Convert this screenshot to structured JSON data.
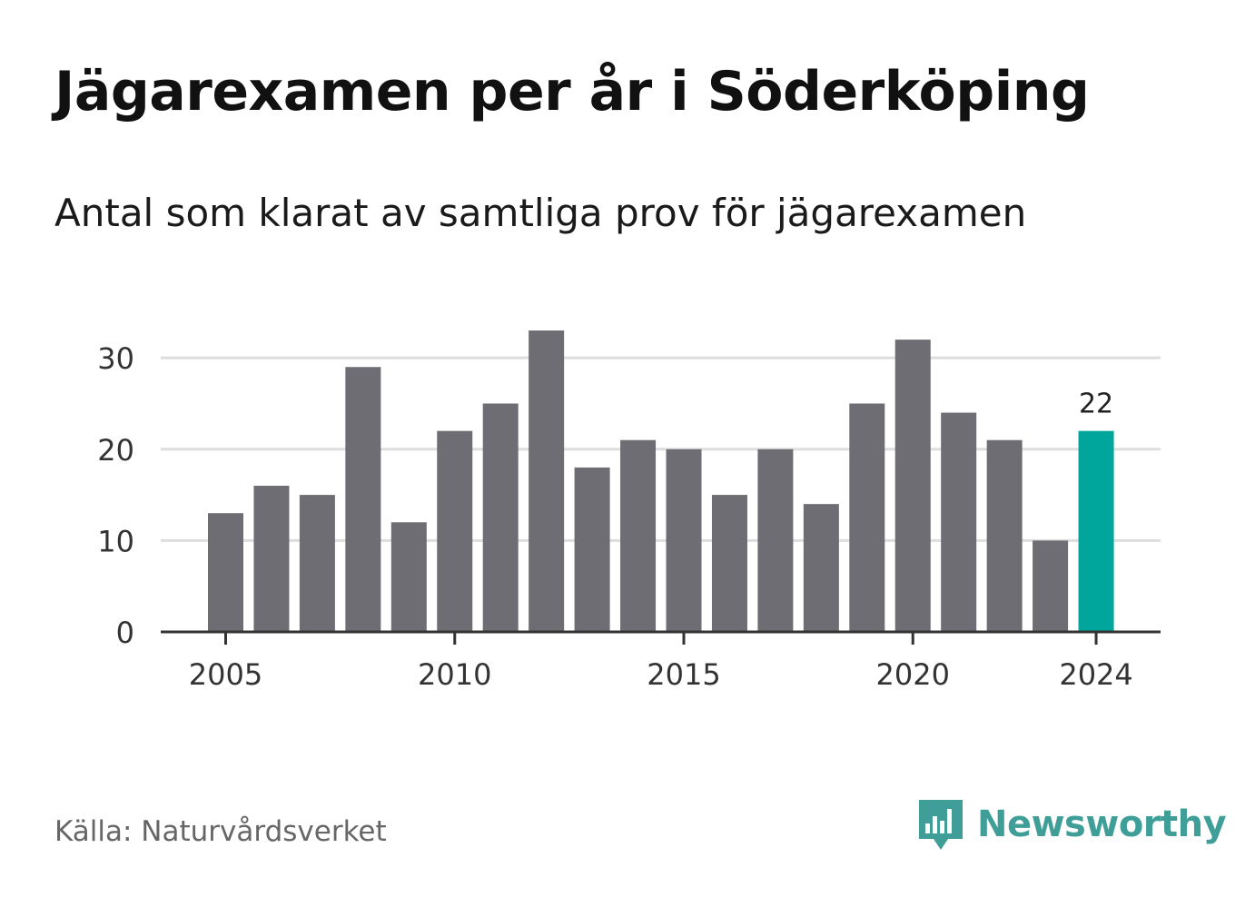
{
  "title": "Jägarexamen per år i Söderköping",
  "subtitle": "Antal som klarat av samtliga prov för jägarexamen",
  "source": "Källa: Naturvårdsverket",
  "brand": {
    "name": "Newsworthy",
    "color": "#3f9e97",
    "icon": "bar-chart-speech-bubble-icon"
  },
  "colors": {
    "bar": "#6e6d73",
    "highlight": "#00a59b",
    "grid": "#dddddd",
    "axis": "#333333",
    "text": "#333333"
  },
  "chart_data": {
    "type": "bar",
    "x": [
      2005,
      2006,
      2007,
      2008,
      2009,
      2010,
      2011,
      2012,
      2013,
      2014,
      2015,
      2016,
      2017,
      2018,
      2019,
      2020,
      2021,
      2022,
      2023,
      2024
    ],
    "values": [
      13,
      16,
      15,
      29,
      12,
      22,
      25,
      33,
      18,
      21,
      20,
      15,
      20,
      14,
      25,
      32,
      24,
      21,
      10,
      22
    ],
    "ylim": [
      0,
      33
    ],
    "yticks": [
      0,
      10,
      20,
      30
    ],
    "xticks": [
      2005,
      2010,
      2015,
      2020,
      2024
    ],
    "grid": true,
    "highlight": {
      "x": 2024,
      "label": "22"
    }
  }
}
